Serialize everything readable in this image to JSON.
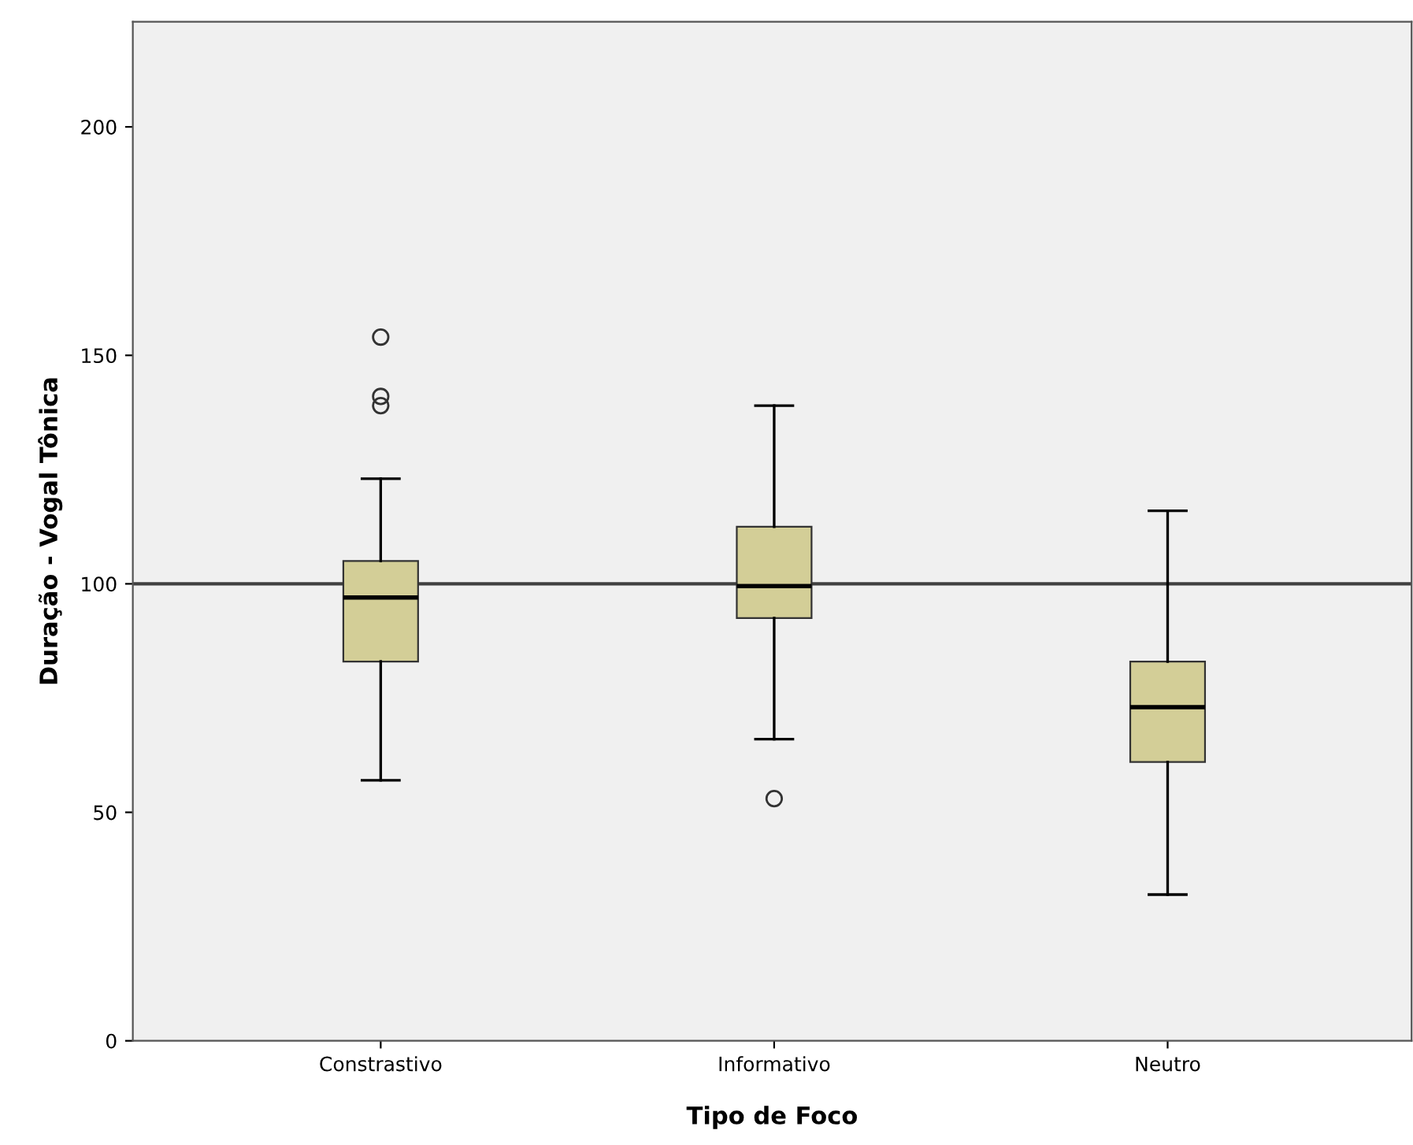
{
  "chart_data": {
    "type": "box",
    "xlabel": "Tipo de Foco",
    "ylabel": "Duração - Vogal Tônica",
    "categories": [
      "Constrastivo",
      "Informativo",
      "Neutro"
    ],
    "boxes": [
      {
        "low": 57,
        "q1": 83,
        "median": 97,
        "q3": 105,
        "high": 123,
        "outliers": [
          154,
          141,
          139
        ]
      },
      {
        "low": 66,
        "q1": 92.5,
        "median": 99.5,
        "q3": 112.5,
        "high": 139,
        "outliers": [
          53
        ]
      },
      {
        "low": 32,
        "q1": 61,
        "median": 73,
        "q3": 83,
        "high": 116
      }
    ],
    "color": "#d3ce97",
    "ylim": [
      0,
      223
    ],
    "yticks": [
      0,
      50,
      100,
      150,
      200
    ],
    "grid": false,
    "ref_lines": [
      {
        "axis": "y",
        "value": 100,
        "color": "#404040"
      }
    ]
  }
}
